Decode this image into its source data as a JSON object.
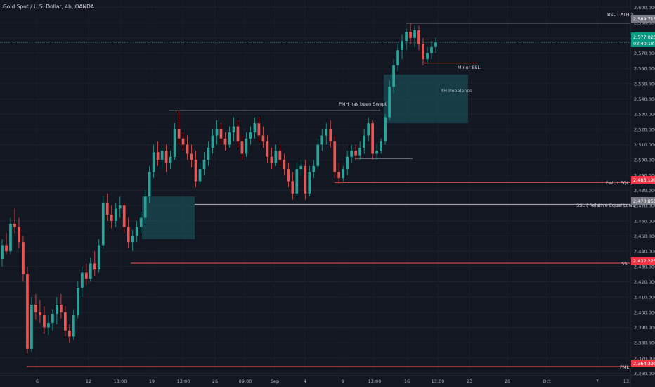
{
  "chart_data": {
    "type": "candlestick",
    "title": "Gold Spot / U.S. Dollar, 4h, OANDA",
    "y_ticks": [
      2360,
      2370,
      2380,
      2390,
      2400,
      2410,
      2420,
      2430,
      2440,
      2450,
      2460,
      2470,
      2480,
      2490,
      2500,
      2510,
      2520,
      2530,
      2540,
      2550,
      2560,
      2570,
      2580,
      2590,
      2600
    ],
    "y_tick_labels": [
      "2,360.000",
      "2,370.000",
      "2,380.000",
      "2,390.000",
      "2,400.000",
      "2,410.000",
      "2,420.000",
      "2,430.000",
      "2,440.000",
      "2,450.000",
      "2,460.000",
      "2,470.000",
      "2,480.000",
      "2,490.000",
      "2,500.000",
      "2,510.000",
      "2,520.000",
      "2,530.000",
      "2,540.000",
      "2,550.000",
      "2,560.000",
      "2,570.000",
      "2,580.000",
      "2,590.000",
      "2,600.000"
    ],
    "ylim": [
      2357,
      2603
    ],
    "x_labels": [
      "6",
      "12",
      "13:00",
      "19",
      "13:00",
      "26",
      "09:00",
      "Sep",
      "4",
      "9",
      "13:00",
      "16",
      "13:00",
      "23",
      "26",
      "Oct",
      "7",
      "13:"
    ],
    "candles_ohlc": [
      [
        2435,
        2448,
        2430,
        2444
      ],
      [
        2444,
        2452,
        2438,
        2440
      ],
      [
        2440,
        2462,
        2438,
        2458
      ],
      [
        2458,
        2468,
        2452,
        2456
      ],
      [
        2456,
        2462,
        2442,
        2446
      ],
      [
        2446,
        2450,
        2420,
        2425
      ],
      [
        2425,
        2430,
        2373,
        2376
      ],
      [
        2376,
        2410,
        2374,
        2405
      ],
      [
        2405,
        2412,
        2395,
        2400
      ],
      [
        2400,
        2408,
        2393,
        2398
      ],
      [
        2398,
        2404,
        2386,
        2390
      ],
      [
        2390,
        2398,
        2385,
        2393
      ],
      [
        2393,
        2402,
        2388,
        2399
      ],
      [
        2399,
        2410,
        2392,
        2405
      ],
      [
        2405,
        2412,
        2396,
        2400
      ],
      [
        2400,
        2404,
        2384,
        2388
      ],
      [
        2388,
        2392,
        2380,
        2384
      ],
      [
        2384,
        2402,
        2382,
        2398
      ],
      [
        2398,
        2420,
        2396,
        2416
      ],
      [
        2416,
        2430,
        2410,
        2426
      ],
      [
        2426,
        2432,
        2418,
        2422
      ],
      [
        2422,
        2436,
        2420,
        2432
      ],
      [
        2432,
        2440,
        2424,
        2428
      ],
      [
        2428,
        2448,
        2426,
        2444
      ],
      [
        2444,
        2476,
        2442,
        2472
      ],
      [
        2472,
        2478,
        2460,
        2464
      ],
      [
        2464,
        2470,
        2455,
        2460
      ],
      [
        2460,
        2472,
        2456,
        2468
      ],
      [
        2468,
        2476,
        2462,
        2470
      ],
      [
        2470,
        2472,
        2452,
        2456
      ],
      [
        2456,
        2462,
        2442,
        2446
      ],
      [
        2446,
        2454,
        2440,
        2450
      ],
      [
        2450,
        2460,
        2446,
        2456
      ],
      [
        2456,
        2466,
        2452,
        2462
      ],
      [
        2462,
        2480,
        2458,
        2476
      ],
      [
        2476,
        2496,
        2472,
        2492
      ],
      [
        2492,
        2510,
        2488,
        2505
      ],
      [
        2505,
        2512,
        2496,
        2500
      ],
      [
        2500,
        2508,
        2494,
        2506
      ],
      [
        2506,
        2510,
        2492,
        2498
      ],
      [
        2498,
        2506,
        2494,
        2502
      ],
      [
        2502,
        2524,
        2500,
        2520
      ],
      [
        2520,
        2532,
        2510,
        2514
      ],
      [
        2514,
        2518,
        2506,
        2510
      ],
      [
        2510,
        2516,
        2500,
        2504
      ],
      [
        2504,
        2510,
        2495,
        2500
      ],
      [
        2500,
        2506,
        2482,
        2486
      ],
      [
        2486,
        2498,
        2484,
        2494
      ],
      [
        2494,
        2505,
        2490,
        2500
      ],
      [
        2500,
        2512,
        2496,
        2508
      ],
      [
        2508,
        2520,
        2504,
        2516
      ],
      [
        2516,
        2526,
        2510,
        2520
      ],
      [
        2520,
        2524,
        2510,
        2514
      ],
      [
        2514,
        2518,
        2506,
        2510
      ],
      [
        2510,
        2522,
        2508,
        2518
      ],
      [
        2518,
        2528,
        2512,
        2522
      ],
      [
        2522,
        2526,
        2508,
        2512
      ],
      [
        2512,
        2516,
        2500,
        2504
      ],
      [
        2504,
        2518,
        2502,
        2514
      ],
      [
        2514,
        2522,
        2510,
        2518
      ],
      [
        2518,
        2528,
        2514,
        2524
      ],
      [
        2524,
        2528,
        2512,
        2516
      ],
      [
        2516,
        2522,
        2508,
        2512
      ],
      [
        2512,
        2516,
        2498,
        2502
      ],
      [
        2502,
        2508,
        2494,
        2498
      ],
      [
        2498,
        2510,
        2496,
        2506
      ],
      [
        2506,
        2510,
        2496,
        2500
      ],
      [
        2500,
        2504,
        2490,
        2494
      ],
      [
        2494,
        2498,
        2482,
        2486
      ],
      [
        2486,
        2492,
        2474,
        2478
      ],
      [
        2478,
        2498,
        2476,
        2494
      ],
      [
        2494,
        2500,
        2490,
        2496
      ],
      [
        2496,
        2500,
        2474,
        2478
      ],
      [
        2478,
        2496,
        2476,
        2492
      ],
      [
        2492,
        2500,
        2488,
        2496
      ],
      [
        2496,
        2514,
        2494,
        2510
      ],
      [
        2510,
        2520,
        2506,
        2516
      ],
      [
        2516,
        2524,
        2510,
        2520
      ],
      [
        2520,
        2526,
        2508,
        2512
      ],
      [
        2512,
        2516,
        2488,
        2492
      ],
      [
        2492,
        2498,
        2484,
        2488
      ],
      [
        2488,
        2496,
        2486,
        2494
      ],
      [
        2494,
        2506,
        2490,
        2502
      ],
      [
        2502,
        2510,
        2498,
        2506
      ],
      [
        2506,
        2510,
        2500,
        2503
      ],
      [
        2503,
        2512,
        2500,
        2508
      ],
      [
        2508,
        2520,
        2504,
        2516
      ],
      [
        2516,
        2528,
        2512,
        2524
      ],
      [
        2524,
        2526,
        2500,
        2504
      ],
      [
        2504,
        2510,
        2500,
        2506
      ],
      [
        2506,
        2514,
        2504,
        2512
      ],
      [
        2512,
        2530,
        2510,
        2528
      ],
      [
        2528,
        2552,
        2526,
        2548
      ],
      [
        2548,
        2566,
        2544,
        2562
      ],
      [
        2562,
        2576,
        2558,
        2572
      ],
      [
        2572,
        2582,
        2566,
        2578
      ],
      [
        2578,
        2586,
        2572,
        2584
      ],
      [
        2584,
        2590,
        2576,
        2580
      ],
      [
        2580,
        2588,
        2574,
        2585
      ],
      [
        2585,
        2588,
        2572,
        2576
      ],
      [
        2576,
        2580,
        2562,
        2566
      ],
      [
        2566,
        2574,
        2563,
        2570
      ],
      [
        2570,
        2578,
        2566,
        2574
      ],
      [
        2574,
        2580,
        2570,
        2577
      ]
    ],
    "colors": {
      "up": "#26a69a",
      "down": "#ef5350",
      "background": "#131722"
    }
  },
  "header": {
    "title": "Gold Spot / U.S. Dollar, 4h, OANDA"
  },
  "annotations": {
    "bsl": "BSL ( ATH )",
    "minor_ssl": "Minor SSL",
    "imbalance": "4H Imbalance",
    "pmh": "PMH has been Swept",
    "pwl": "PWL ( EQL )",
    "ssl_eq": "SSL ( Relative Equal Lows )",
    "ssl": "SSL",
    "pml": "PML"
  },
  "price_labels": {
    "bsl": "2,589.715",
    "current": "2,577.025",
    "countdown": "03:40:18",
    "pwl": "2,485.190",
    "ssl_eq": "2,470.850",
    "ssl": "2,432.225",
    "pml": "2,364.390"
  }
}
